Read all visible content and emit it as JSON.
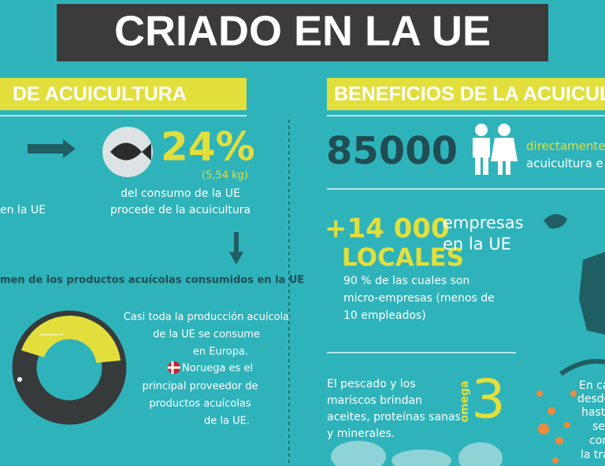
{
  "title": "CRIADO EN LA UE",
  "left": {
    "header": "DE ACUICULTURA",
    "percent": "24%",
    "weight": "(5,54 kg)",
    "consumption": [
      "del consumo de la UE",
      "procede de la acuicultura"
    ],
    "partial": "en la UE",
    "origin_heading": "men de los productos acuícolas consumidos en la UE",
    "note1": [
      "Casi toda la producción acuícola",
      "de la UE se consume",
      "en Europa."
    ],
    "note2": [
      "Noruega es el",
      "principal proveedor de",
      "productos acuícolas",
      "de la UE."
    ]
  },
  "right": {
    "header": "BENEFICIOS DE LA ACUICUL",
    "jobs": "85000",
    "jobs_text": [
      "directamente",
      "acuicultura e"
    ],
    "companies": "+14 000",
    "companies_unit": "LOCALES",
    "companies_text": [
      "empresas",
      "en la UE"
    ],
    "companies_note": [
      "90 % de las cuales son",
      "micro-empresas (menos de",
      "10 empleados)"
    ],
    "health": [
      "El pescado y los",
      "mariscos brindan",
      "aceites, proteínas sanas",
      "y minerales."
    ],
    "omega_word": "omega",
    "omega_number": "3",
    "partial": [
      "En ca",
      "desde",
      "hasta",
      "se",
      "con",
      "la tra"
    ]
  }
}
